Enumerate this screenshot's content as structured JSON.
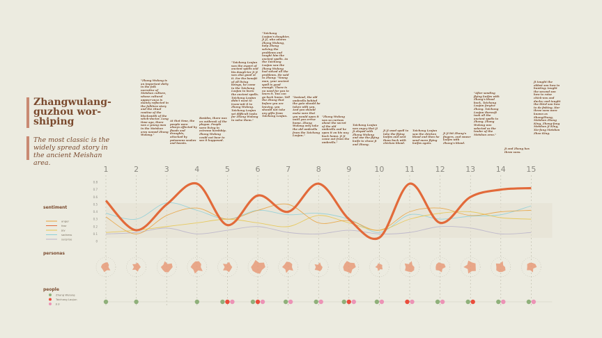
{
  "title": "Zhangwulang-guzhou wor-shiping",
  "subtitle": "The most classic is the widely spread story in the ancient Meishan area.",
  "stories": [
    "\"Zhang Wulang is an important deity in the folk narrative of Meishan culture, whose cultural appear-ance is mainly reflected in the folklore story and the ritual routine of the blacksmith of the witch-doctor. Long time ago, there was a young man in the Meishan area named Zhang Wulang.\"",
    "At that time, the people were always affected by floods and droughts, attacked by poisonous snakes and beasts.",
    "Besides, there was an outbreak of the plague. People were living in extreme hardship. Zhang Wulang could not bear to see it happened.",
    "\"Taichang Laojun was the expert of ancient spells and his daugh-ter Ji Ji was also good at it. For the benefit of all living beings, he came to the Taichang Laojun to learn the ancient spells. Taichang Laojun didn't want to trans-mit it to Zhang Wulang. Taichang Laojun set difficult tasks for Zhang Wulang to solve them.\"",
    "\"Taichang Laojun's daughter, Ji Ji, who adores Zhang Wulang, help Zhang solving the problems and taught him the ancient spells. As the Taichang Laojun saw the Zhang Wulang had solved all the problems. He said to Zhang: \"Young man, your ancient spell is good enough. There is no need for you to learn it. You can go back home. Tell the Zhang that before you are leaving, you should not take any gifts from Taichang Laojun.",
    "\"Instead, the old umbrella behind the gate should be taken with you. And you should make sure that you would open it until you arrive home. Zhang Wulang only take the old umbrella from the Taichang Laojun.\"",
    "\"Zhang Wulang was so curious about the secret of the old umbrella and he open it on his way back home. Ji Ji came out from the umbrella.\"",
    "Taichang Laojun was angry that Ji Ji eloped with Zhang Wulang and use the flying knife to chase Ji and Zhang.",
    "Ji Ji used spell to take the flying knifes and sent them back with chicken blood.",
    "Taichang Laojun saw the chicken blood and then he send more flying knifes again.",
    "Ji Ji hit Zhang's fingers, and smear knifes with Zhang's blood.",
    "\"After sending flying knifes with Zhang's blood back, Taichang Laojun forgive Zhang. Taichang Laojun thereaft took all the ancient spells to Zhang. Zhang Wulang was selected as the leader of the Meishan area.\"",
    "Ji and Zhang has three sons.",
    "Ji taught the oldest son how to hunting; taught the second son how to raise chick-ens and ducks; and taught the third son how to do fishing. Her three sons were known as ShangZhang, Meishan Zhang King, Zhang-fang Meishan Ji King, Xia-fang Meishan Zhao King."
  ],
  "chart_data": {
    "type": "line",
    "x": [
      1,
      2,
      3,
      4,
      5,
      6,
      7,
      8,
      9,
      10,
      11,
      12,
      13,
      14,
      15
    ],
    "ylim": [
      0,
      0.8
    ],
    "yticks": [
      "0",
      "0.1",
      "0.2",
      "0.3",
      "0.4",
      "0.5",
      "0.6",
      "0.7",
      "0.8"
    ],
    "section_labels": {
      "sentiment": "sentiment",
      "personas": "personas",
      "people": "people"
    },
    "series": [
      {
        "name": "anger",
        "color": "#e8a03a",
        "values": [
          0.33,
          0.1,
          0.35,
          0.45,
          0.3,
          0.42,
          0.5,
          0.25,
          0.28,
          0.15,
          0.4,
          0.45,
          0.35,
          0.4,
          0.42
        ]
      },
      {
        "name": "fear",
        "color": "#e26a3a",
        "values": [
          0.55,
          0.15,
          0.5,
          0.78,
          0.22,
          0.62,
          0.4,
          0.78,
          0.3,
          0.05,
          0.78,
          0.25,
          0.6,
          0.7,
          0.72
        ]
      },
      {
        "name": "joy",
        "color": "#e6c44a",
        "values": [
          0.12,
          0.15,
          0.2,
          0.25,
          0.3,
          0.25,
          0.2,
          0.35,
          0.25,
          0.15,
          0.3,
          0.38,
          0.4,
          0.32,
          0.3
        ]
      },
      {
        "name": "sadness",
        "color": "#8ccfd8",
        "values": [
          0.38,
          0.3,
          0.52,
          0.42,
          0.3,
          0.42,
          0.36,
          0.38,
          0.3,
          0.12,
          0.36,
          0.3,
          0.34,
          0.36,
          0.48
        ]
      },
      {
        "name": "surprise",
        "color": "#b7b1c9",
        "values": [
          0.1,
          0.12,
          0.18,
          0.1,
          0.15,
          0.2,
          0.12,
          0.1,
          0.15,
          0.1,
          0.12,
          0.2,
          0.18,
          0.1,
          0.12
        ]
      }
    ],
    "people": [
      {
        "name": "Zhang Wulang",
        "color": "#8fb07a"
      },
      {
        "name": "Taichang Laojun",
        "color": "#ea4d3c"
      },
      {
        "name": "Ji Ji",
        "color": "#ec93b6"
      }
    ],
    "appearances": [
      {
        "x": 1,
        "people": [
          0
        ]
      },
      {
        "x": 2,
        "people": [
          0
        ]
      },
      {
        "x": 3,
        "people": []
      },
      {
        "x": 4,
        "people": [
          0
        ]
      },
      {
        "x": 5,
        "people": [
          0,
          1,
          2
        ]
      },
      {
        "x": 6,
        "people": [
          0,
          1,
          2
        ]
      },
      {
        "x": 7,
        "people": [
          0,
          2
        ]
      },
      {
        "x": 8,
        "people": [
          0,
          2
        ]
      },
      {
        "x": 9,
        "people": [
          0,
          1,
          2
        ]
      },
      {
        "x": 10,
        "people": [
          0,
          2
        ]
      },
      {
        "x": 11,
        "people": [
          1,
          2
        ]
      },
      {
        "x": 12,
        "people": [
          0,
          2
        ]
      },
      {
        "x": 13,
        "people": [
          0,
          1
        ]
      },
      {
        "x": 14,
        "people": [
          0,
          2
        ]
      },
      {
        "x": 15,
        "people": [
          0,
          2
        ]
      }
    ]
  }
}
